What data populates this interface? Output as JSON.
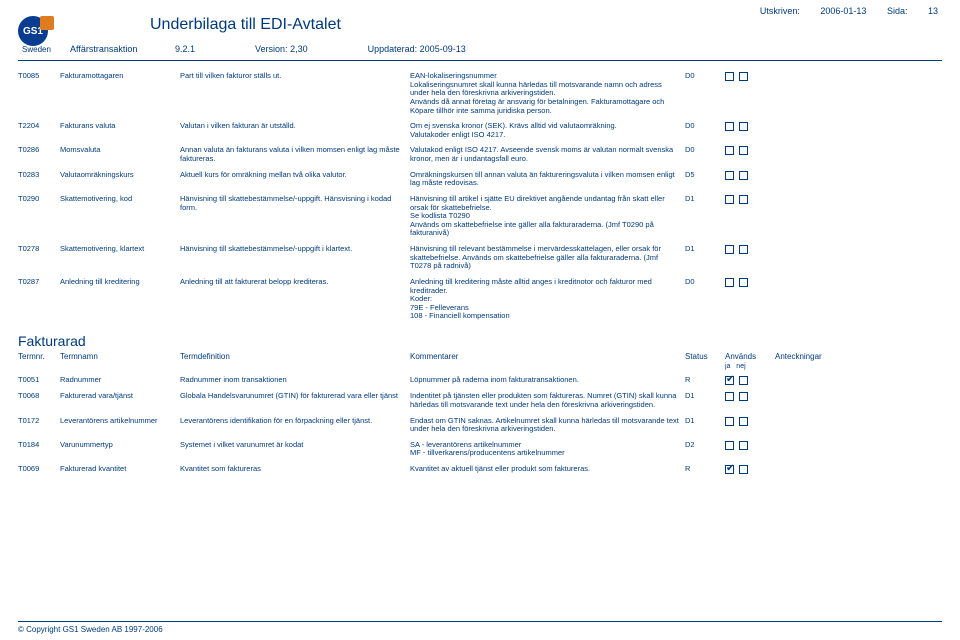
{
  "meta": {
    "printed_label": "Utskriven:",
    "printed": "2006-01-13",
    "page_label": "Sida:",
    "page": "13"
  },
  "header": {
    "title": "Underbilaga till EDI-Avtalet",
    "line1_label": "Affärstransaktion",
    "line1_val": "9.2.1",
    "version_label": "Version:",
    "version": "2,30",
    "updated_label": "Uppdaterad:",
    "updated": "2005-09-13",
    "logo_text": "GS1",
    "logo_sub": "Sweden"
  },
  "rows": [
    {
      "id": "T0085",
      "name": "Fakturamottagaren",
      "def": "Part till vilken fakturor ställs ut.",
      "comm": "EAN-lokaliseringsnummer\nLokaliseringsnumret skall kunna härledas till motsvarande namn och adress under hela den föreskrivna arkiveringstiden.\nAnvänds då annat företag är ansvarig för betalningen. Fakturamottagare och Köpare tillhör inte samma juridiska person.",
      "status": "D0",
      "ja": false,
      "nej": false
    },
    {
      "id": "T2204",
      "name": "Fakturans valuta",
      "def": "Valutan i vilken fakturan är utställd.",
      "comm": "Om ej svenska kronor (SEK). Krävs alltid vid valutaomräkning.\nValutakoder enligt ISO 4217.",
      "status": "D0",
      "ja": false,
      "nej": false
    },
    {
      "id": "T0286",
      "name": "Momsvaluta",
      "def": "Annan valuta än fakturans valuta i vilken momsen enligt lag måste faktureras.",
      "comm": "Valutakod enligt ISO 4217. Avseende svensk moms är valutan normalt svenska kronor, men är i undantagsfall euro.",
      "status": "D0",
      "ja": false,
      "nej": false
    },
    {
      "id": "T0283",
      "name": "Valutaomräkningskurs",
      "def": "Aktuell kurs för omräkning mellan två olika valutor.",
      "comm": "Omräkningskursen till annan valuta än faktureringsvaluta i vilken momsen enligt lag måste redovisas.",
      "status": "D5",
      "ja": false,
      "nej": false
    },
    {
      "id": "T0290",
      "name": "Skattemotivering, kod",
      "def": "Hänvisning till skattebestämmelse/-uppgift. Hänsvisning i kodad form.",
      "comm": "Hänvisning till artikel i sjätte EU direktivet angående undantag från skatt eller orsak för skattebefrielse.\nSe kodlista T0290\nAnvänds om skattebefrielse inte gäller alla fakturaraderna. (Jmf T0290 på fakturanivå)",
      "status": "D1",
      "ja": false,
      "nej": false
    },
    {
      "id": "T0278",
      "name": "Skattemotivering, klartext",
      "def": "Hänvisning till skattebestämmelse/-uppgift i klartext.",
      "comm": "Hänvisning till relevant bestämmelse i mervärdesskattelagen, eller orsak för skattebefrielse. Används om skattebefrielse gäller alla fakturaraderna. (Jmf T0278 på radnivå)",
      "status": "D1",
      "ja": false,
      "nej": false
    },
    {
      "id": "T0287",
      "name": "Anledning till kreditering",
      "def": "Anledning till att fakturerat belopp krediteras.",
      "comm": "Anledning till kreditering måste alltid anges i kreditnotor och fakturor med kreditrader.\nKoder:\n79E - Felleverans\n108 - Financiell kompensation",
      "status": "D0",
      "ja": false,
      "nej": false
    }
  ],
  "section": {
    "title": "Fakturarad",
    "h_termnr": "Termnr.",
    "h_termnamn": "Termnamn",
    "h_def": "Termdefinition",
    "h_komm": "Kommentarer",
    "h_status": "Status",
    "h_anv": "Används",
    "h_ja": "ja",
    "h_nej": "nej",
    "h_ant": "Anteckningar"
  },
  "rows2": [
    {
      "id": "T0051",
      "name": "Radnummer",
      "def": "Radnummer inom transaktionen",
      "comm": "Löpnummer på raderna inom fakturatransaktionen.",
      "status": "R",
      "ja": true,
      "nej": false
    },
    {
      "id": "T0068",
      "name": "Fakturerad vara/tjänst",
      "def": "Globala Handelsvarunumret (GTIN) för fakturerad vara eller tjänst",
      "comm": "Indentitet på tjänsten eller produkten som faktureras. Numret (GTIN) skall kunna härledas till motsvarande text under hela den föreskrivna arkiveringstiden.",
      "status": "D1",
      "ja": false,
      "nej": false
    },
    {
      "id": "T0172",
      "name": "Leverantörens artikelnummer",
      "def": "Leverantörens identifikation för en förpackning eller tjänst.",
      "comm": "Endast om GTIN saknas. Artikelnumret skall kunna härledas till motsvarande text under hela den föreskrivna arkiveringstiden.",
      "status": "D1",
      "ja": false,
      "nej": false
    },
    {
      "id": "T0184",
      "name": "Varunummertyp",
      "def": "Systemet i vilket varunumret är kodat",
      "comm": "SA - leverantörens artikelnummer\nMF - tillverkarens/producentens artikelnummer",
      "status": "D2",
      "ja": false,
      "nej": false
    },
    {
      "id": "T0069",
      "name": "Fakturerad kvantitet",
      "def": "Kvantitet som faktureras",
      "comm": "Kvantitet av aktuell tjänst eller produkt som faktureras.",
      "status": "R",
      "ja": true,
      "nej": false
    }
  ],
  "footer": "© Copyright GS1 Sweden AB 1997-2006"
}
